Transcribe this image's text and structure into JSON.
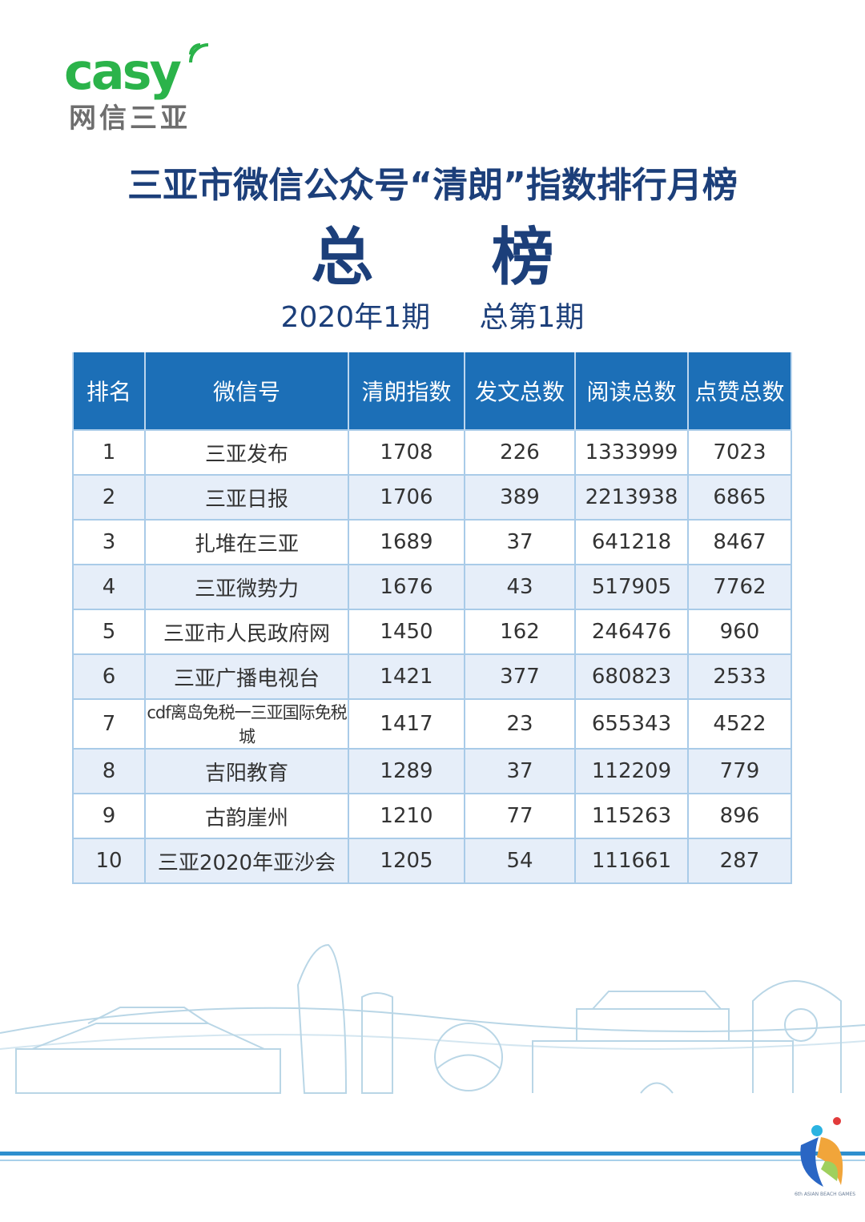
{
  "logo": {
    "brand": "casy",
    "sub": "网信三亚"
  },
  "title": "三亚市微信公众号“清朗”指数排行月榜",
  "subtitle": "总 榜",
  "period": {
    "issue": "2020年1期",
    "total": "总第1期"
  },
  "table": {
    "headers": [
      "排名",
      "微信号",
      "清朗指数",
      "发文总数",
      "阅读总数",
      "点赞总数"
    ],
    "rows": [
      [
        "1",
        "三亚发布",
        "1708",
        "226",
        "1333999",
        "7023"
      ],
      [
        "2",
        "三亚日报",
        "1706",
        "389",
        "2213938",
        "6865"
      ],
      [
        "3",
        "扎堆在三亚",
        "1689",
        "37",
        "641218",
        "8467"
      ],
      [
        "4",
        "三亚微势力",
        "1676",
        "43",
        "517905",
        "7762"
      ],
      [
        "5",
        "三亚市人民政府网",
        "1450",
        "162",
        "246476",
        "960"
      ],
      [
        "6",
        "三亚广播电视台",
        "1421",
        "377",
        "680823",
        "2533"
      ],
      [
        "7",
        "cdf离岛免税一三亚国际免税城",
        "1417",
        "23",
        "655343",
        "4522"
      ],
      [
        "8",
        "吉阳教育",
        "1289",
        "37",
        "112209",
        "779"
      ],
      [
        "9",
        "古韵崖州",
        "1210",
        "77",
        "115263",
        "896"
      ],
      [
        "10",
        "三亚2020年亚沙会",
        "1205",
        "54",
        "111661",
        "287"
      ]
    ]
  },
  "emblem": {
    "caption": "6th ASIAN BEACH GAMES"
  },
  "colors": {
    "brand_green": "#2bb34a",
    "title_navy": "#1c3f7a",
    "header_blue": "#1c6fb7",
    "row_alt": "#e6eef9"
  }
}
